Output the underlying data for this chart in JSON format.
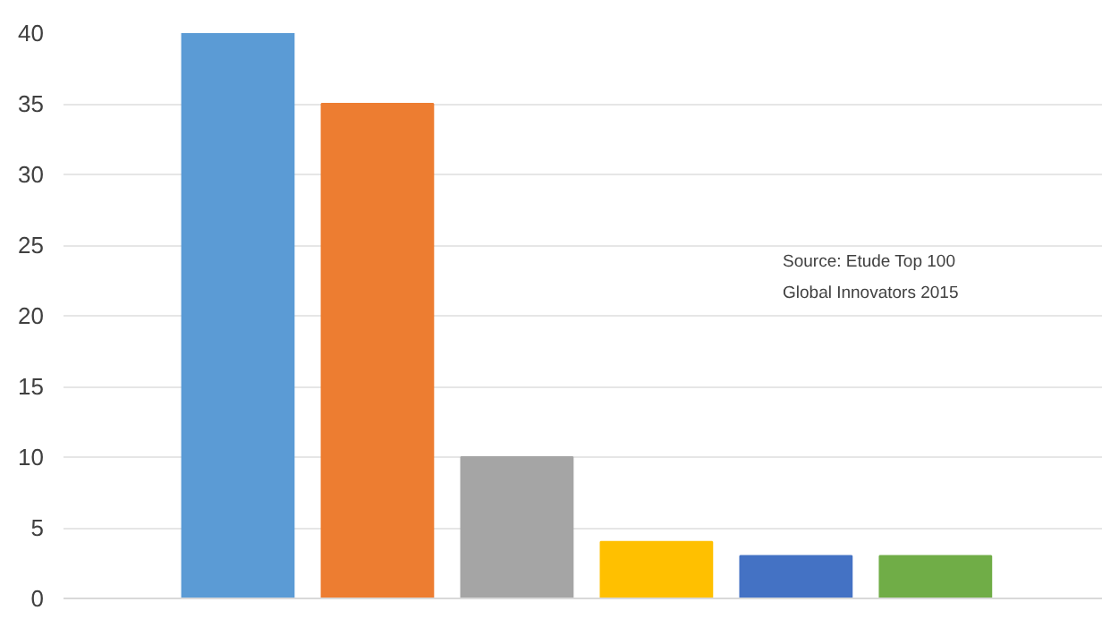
{
  "chart_data": {
    "type": "bar",
    "categories": [
      null,
      null,
      null,
      null,
      null,
      null
    ],
    "values": [
      40,
      35,
      10,
      4,
      3,
      3
    ],
    "colors": [
      "#5b9bd5",
      "#ed7d31",
      "#a5a5a5",
      "#ffc000",
      "#4472c4",
      "#70ad47"
    ],
    "ylim": [
      0,
      40
    ],
    "yticks": [
      0,
      5,
      10,
      15,
      20,
      25,
      30,
      35,
      40
    ],
    "grid": "y",
    "annotations": [
      "Source: Etude Top 100 Global Innovators 2015"
    ]
  }
}
